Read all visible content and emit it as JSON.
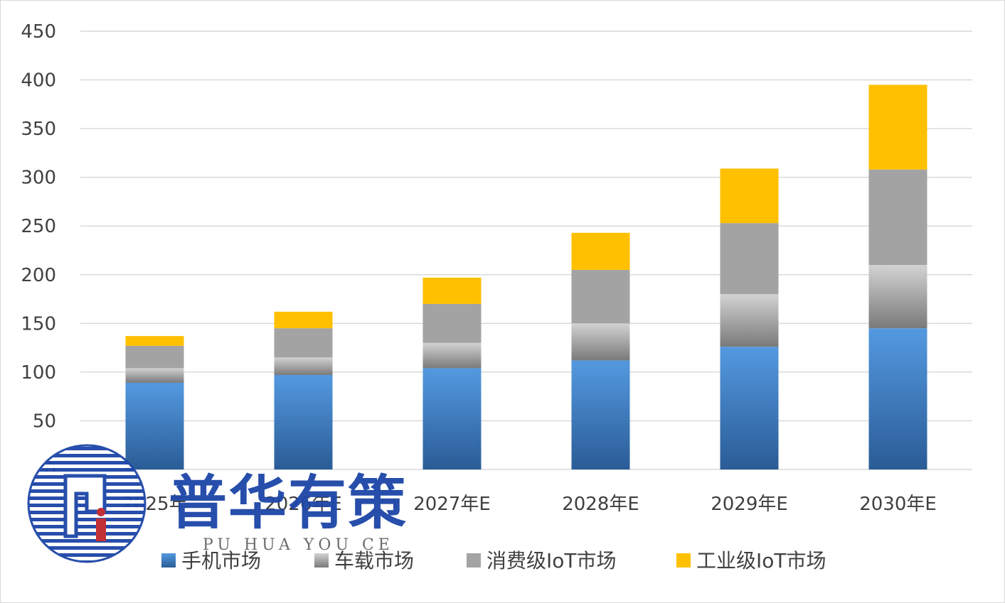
{
  "chart_data": {
    "type": "bar",
    "stacked": true,
    "categories": [
      "2025年",
      "2026年E",
      "2027年E",
      "2028年E",
      "2029年E",
      "2030年E"
    ],
    "series": [
      {
        "name": "手机市场",
        "values": [
          89,
          97,
          104,
          112,
          126,
          145
        ],
        "color": "#3d7cc9"
      },
      {
        "name": "车载市场",
        "values": [
          15,
          18,
          26,
          38,
          54,
          65
        ],
        "color": "#a6a6a6"
      },
      {
        "name": "消费级IoT市场",
        "values": [
          23,
          30,
          40,
          55,
          73,
          98
        ],
        "color": "#a0a0a0"
      },
      {
        "name": "工业级IoT市场",
        "values": [
          10,
          17,
          27,
          38,
          56,
          87
        ],
        "color": "#ffc000"
      }
    ],
    "y_ticks": [
      "0",
      "50",
      "100",
      "150",
      "200",
      "250",
      "300",
      "350",
      "400",
      "450"
    ],
    "ylim": [
      0,
      450
    ],
    "grid": true,
    "legend_position": "bottom"
  },
  "watermark": {
    "name_cn": "普华有策",
    "pinyin": "PU HUA YOU CE"
  }
}
